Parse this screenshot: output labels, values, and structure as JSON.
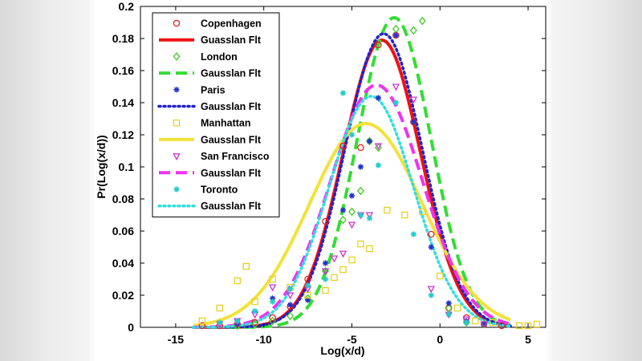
{
  "chart_data": {
    "type": "scatter",
    "title": "",
    "xlabel": "Log(x/d)",
    "ylabel": "Pr(Log(x/d))",
    "xlim": [
      -17,
      6
    ],
    "ylim": [
      0,
      0.2
    ],
    "xticks": [
      -15,
      -10,
      -5,
      0,
      5
    ],
    "yticks": [
      0,
      0.02,
      0.04,
      0.06,
      0.08,
      0.1,
      0.12,
      0.14,
      0.16,
      0.18,
      0.2
    ],
    "grid": false,
    "legend_position": "top-left",
    "series": [
      {
        "name": "Copenhagen",
        "kind": "markers",
        "marker": "circle",
        "color": "#e02020",
        "x": [
          -13.5,
          -12.5,
          -11.5,
          -10.5,
          -9.5,
          -8.5,
          -7.5,
          -6.5,
          -5.5,
          -4.5,
          -3.5,
          -2.5,
          -1.5,
          -0.5,
          0.5,
          1.5,
          2.5,
          3.5
        ],
        "y": [
          0.001,
          0.001,
          0.002,
          0.003,
          0.006,
          0.013,
          0.03,
          0.066,
          0.113,
          0.112,
          0.176,
          0.182,
          0.128,
          0.058,
          0.012,
          0.006,
          0.002,
          0.001
        ]
      },
      {
        "name": "Guasslan Flt",
        "kind": "line",
        "dash": "solid",
        "width": 4,
        "color": "#ee1111",
        "mu": -3.3,
        "sigma": 2.2,
        "peak": 0.179
      },
      {
        "name": "London",
        "kind": "markers",
        "marker": "diamond",
        "color": "#44cc22",
        "x": [
          -11.5,
          -10.5,
          -9.5,
          -8.5,
          -7.5,
          -6.5,
          -5.5,
          -5.0,
          -4.5,
          -4.0,
          -3.5,
          -2.5,
          -1.5,
          -1.0,
          0.5,
          1.5,
          2.5
        ],
        "y": [
          0.001,
          0.002,
          0.004,
          0.007,
          0.018,
          0.035,
          0.067,
          0.072,
          0.085,
          0.116,
          0.112,
          0.186,
          0.185,
          0.191,
          0.012,
          0.003,
          0.002
        ]
      },
      {
        "name": "Gausslan Flt",
        "kind": "line",
        "dash": "dash",
        "width": 4,
        "color": "#33dd33",
        "mu": -2.6,
        "sigma": 2.1,
        "peak": 0.193
      },
      {
        "name": "Paris",
        "kind": "markers",
        "marker": "star",
        "color": "#2233cc",
        "x": [
          -11.5,
          -10.5,
          -9.5,
          -8.5,
          -7.5,
          -6.5,
          -5.5,
          -5.0,
          -4.5,
          -4.0,
          -3.5,
          -2.5,
          -1.5,
          -0.5,
          0.5,
          1.5,
          2.5
        ],
        "y": [
          0.002,
          0.01,
          0.018,
          0.014,
          0.017,
          0.04,
          0.073,
          0.082,
          0.1,
          0.116,
          0.143,
          0.182,
          0.128,
          0.05,
          0.015,
          0.004,
          0.002
        ]
      },
      {
        "name": "Gausslan Flt",
        "kind": "line",
        "dash": "dot",
        "width": 3.5,
        "color": "#2222cc",
        "mu": -3.2,
        "sigma": 2.2,
        "peak": 0.183
      },
      {
        "name": "Manhattan",
        "kind": "markers",
        "marker": "square",
        "color": "#e6d12a",
        "x": [
          -13.5,
          -12.5,
          -11.5,
          -11.0,
          -10.5,
          -9.5,
          -8.5,
          -7.5,
          -6.5,
          -6.0,
          -5.5,
          -5.0,
          -4.5,
          -4.0,
          -3.0,
          -2.0,
          -1.0,
          0.0,
          1.0,
          2.0,
          3.0,
          4.5,
          5.0,
          5.5
        ],
        "y": [
          0.004,
          0.012,
          0.029,
          0.038,
          0.016,
          0.03,
          0.025,
          0.02,
          0.023,
          0.031,
          0.036,
          0.042,
          0.052,
          0.049,
          0.073,
          0.07,
          0.072,
          0.032,
          0.012,
          0.004,
          0.003,
          0.001,
          0.001,
          0.002
        ]
      },
      {
        "name": "Gausslan Flt",
        "kind": "line",
        "dash": "solid",
        "width": 4,
        "color": "#f2e23a",
        "mu": -4.2,
        "sigma": 3.2,
        "peak": 0.127
      },
      {
        "name": "San Francisco",
        "kind": "markers",
        "marker": "triangle-down",
        "color": "#cc33cc",
        "x": [
          -12.5,
          -11.5,
          -10.5,
          -9.5,
          -8.5,
          -7.5,
          -6.5,
          -6.0,
          -5.5,
          -5.0,
          -4.5,
          -4.0,
          -3.5,
          -2.5,
          -1.5,
          -0.5,
          0.5,
          1.5,
          2.5
        ],
        "y": [
          0.002,
          0.004,
          0.008,
          0.025,
          0.02,
          0.024,
          0.035,
          0.043,
          0.046,
          0.064,
          0.07,
          0.07,
          0.113,
          0.15,
          0.142,
          0.024,
          0.008,
          0.005,
          0.002
        ]
      },
      {
        "name": "Gausslan Flt",
        "kind": "line",
        "dash": "dash",
        "width": 4,
        "color": "#ee33ee",
        "mu": -3.6,
        "sigma": 2.6,
        "peak": 0.151
      },
      {
        "name": "Toronto",
        "kind": "markers",
        "marker": "star",
        "color": "#22cccc",
        "x": [
          -12.5,
          -11.5,
          -10.5,
          -9.5,
          -8.5,
          -7.5,
          -6.5,
          -5.5,
          -5.0,
          -4.5,
          -4.0,
          -3.5,
          -2.5,
          -1.5,
          -0.5,
          0.5,
          1.5
        ],
        "y": [
          0.003,
          0.004,
          0.01,
          0.016,
          0.024,
          0.026,
          0.03,
          0.146,
          0.12,
          0.07,
          0.068,
          0.101,
          0.14,
          0.058,
          0.02,
          0.008,
          0.003
        ]
      },
      {
        "name": "Gausslan Flt",
        "kind": "line",
        "dash": "dot",
        "width": 3.5,
        "color": "#33dddd",
        "mu": -3.9,
        "sigma": 2.4,
        "peak": 0.144
      }
    ]
  }
}
